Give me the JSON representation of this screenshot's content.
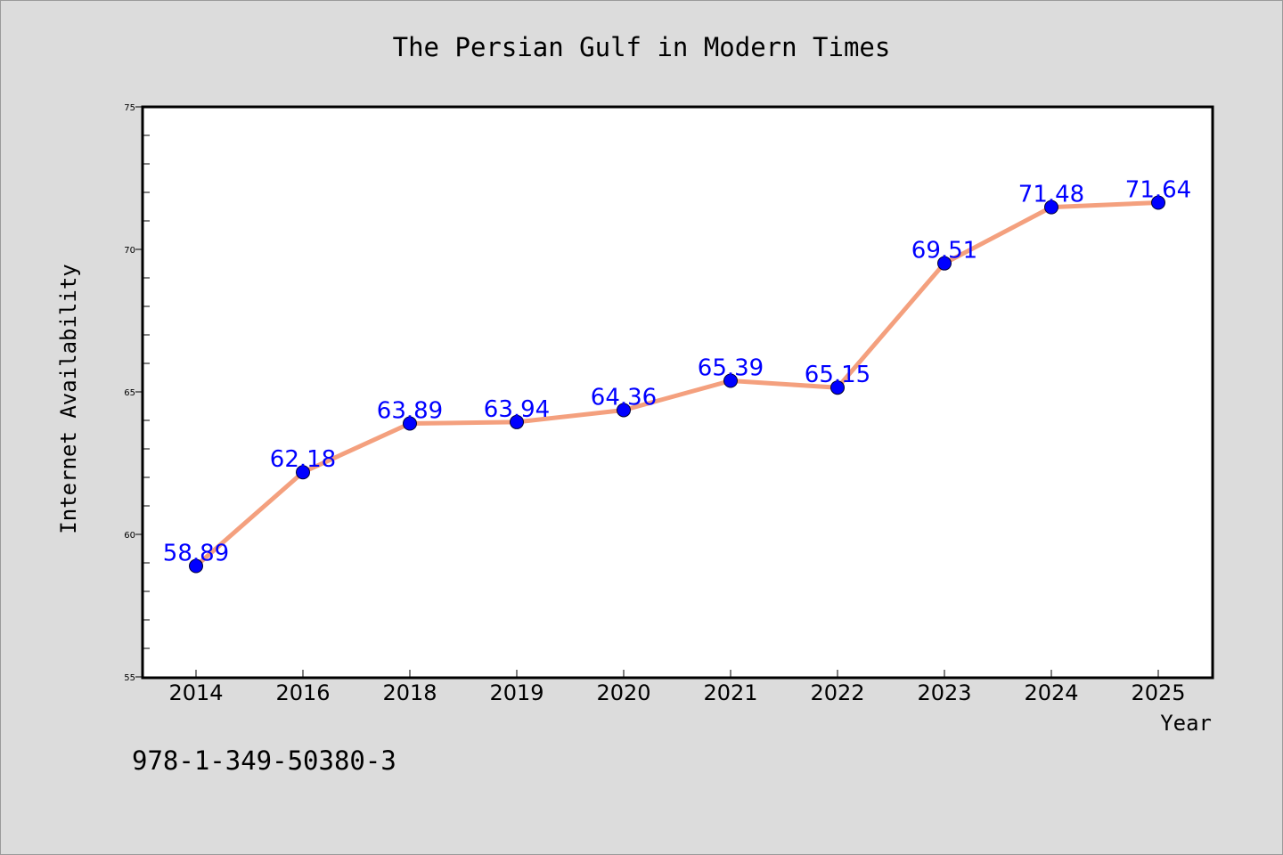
{
  "chart_data": {
    "type": "line",
    "title": "The Persian Gulf in Modern Times",
    "xlabel": "Year",
    "ylabel": "Internet Availability",
    "categories": [
      "2014",
      "2016",
      "2018",
      "2019",
      "2020",
      "2021",
      "2022",
      "2023",
      "2024",
      "2025"
    ],
    "series": [
      {
        "values": [
          58.89,
          62.18,
          63.89,
          63.94,
          64.36,
          65.39,
          65.15,
          69.51,
          71.48,
          71.64
        ]
      }
    ],
    "data_labels": [
      "58.89",
      "62.18",
      "63.89",
      "63.94",
      "64.36",
      "65.39",
      "65.15",
      "69.51",
      "71.48",
      "71.64"
    ],
    "ylim": [
      55,
      75
    ],
    "yticks": [
      55,
      60,
      65,
      70,
      75
    ],
    "grid": false,
    "line_color": "#f4a07e",
    "marker_color": "#0000ff",
    "label_color": "#0000ff"
  },
  "footer": {
    "isbn": "978-1-349-50380-3"
  }
}
